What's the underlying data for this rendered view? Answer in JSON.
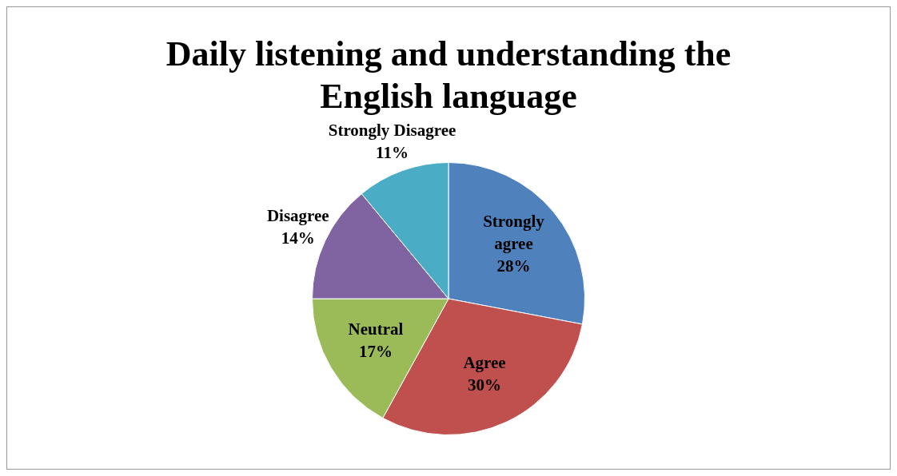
{
  "chart_data": {
    "type": "pie",
    "title": "Daily listening and understanding  the English language",
    "categories": [
      "Strongly agree",
      "Agree",
      "Neutral",
      "Disagree",
      "Strongly Disagree"
    ],
    "values": [
      28,
      30,
      17,
      14,
      11
    ],
    "colors": [
      "#4f81bd",
      "#c0504d",
      "#9bbb59",
      "#8064a2",
      "#4bacc6"
    ],
    "value_labels": [
      "28%",
      "30%",
      "17%",
      "14%",
      "11%"
    ],
    "legend": false
  }
}
